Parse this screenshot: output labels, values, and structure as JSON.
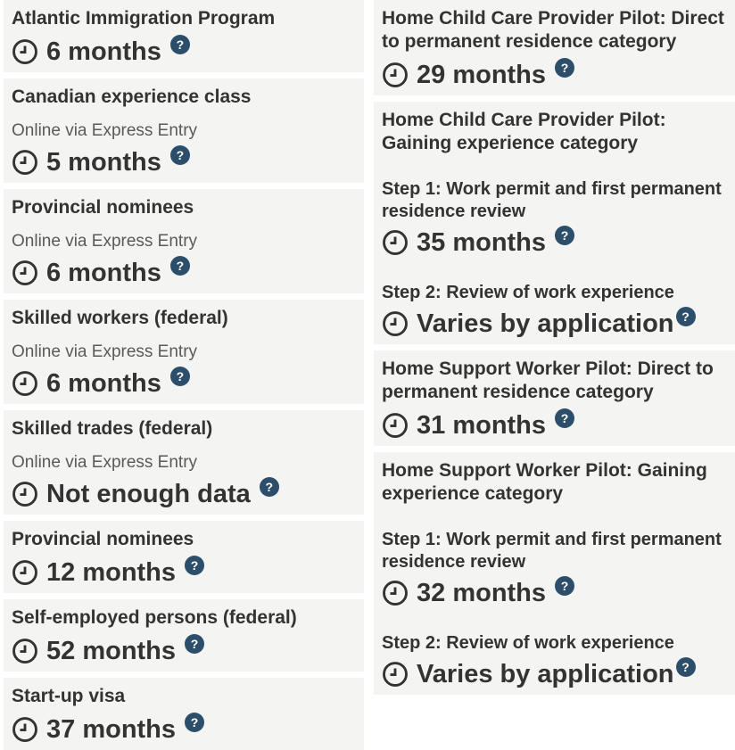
{
  "colors": {
    "card_bg": "#f4f4f2",
    "title_text": "#333333",
    "subtitle_text": "#5a5a5a",
    "time_text": "#333333",
    "help_badge_bg": "#2d4e6b",
    "help_badge_glyph": "#ffffff",
    "clock_stroke": "#333333"
  },
  "help_badge_label": "?",
  "columns": {
    "left": [
      {
        "title": "Atlantic Immigration Program",
        "entries": [
          {
            "time": "6 months"
          }
        ]
      },
      {
        "title": "Canadian experience class",
        "subtitle": "Online via Express Entry",
        "entries": [
          {
            "time": "5 months"
          }
        ]
      },
      {
        "title": "Provincial nominees",
        "subtitle": "Online via Express Entry",
        "entries": [
          {
            "time": "6 months"
          }
        ]
      },
      {
        "title": "Skilled workers (federal)",
        "subtitle": "Online via Express Entry",
        "entries": [
          {
            "time": "6 months"
          }
        ]
      },
      {
        "title": "Skilled trades (federal)",
        "subtitle": "Online via Express Entry",
        "entries": [
          {
            "time": "Not enough data"
          }
        ]
      },
      {
        "title": "Provincial nominees",
        "entries": [
          {
            "time": "12 months"
          }
        ]
      },
      {
        "title": "Self-employed persons (federal)",
        "entries": [
          {
            "time": "52 months"
          }
        ]
      },
      {
        "title": "Start-up visa",
        "entries": [
          {
            "time": "37 months"
          }
        ]
      }
    ],
    "right": [
      {
        "title": "Home Child Care Provider Pilot: Direct to permanent residence category",
        "entries": [
          {
            "time": "29 months"
          }
        ]
      },
      {
        "title": "Home Child Care Provider Pilot: Gaining experience category",
        "entries": [
          {
            "label": "Step 1: Work permit and first permanent residence review",
            "time": "35 months"
          },
          {
            "label": "Step 2: Review of work experience",
            "time": "Varies by application",
            "badge_tight": true
          }
        ]
      },
      {
        "title": "Home Support Worker Pilot: Direct to permanent residence category",
        "entries": [
          {
            "time": "31 months"
          }
        ]
      },
      {
        "title": "Home Support Worker Pilot: Gaining experience category",
        "entries": [
          {
            "label": "Step 1: Work permit and first permanent residence review",
            "time": "32 months"
          },
          {
            "label": "Step 2: Review of work experience",
            "time": "Varies by application",
            "badge_tight": true
          }
        ]
      }
    ]
  }
}
